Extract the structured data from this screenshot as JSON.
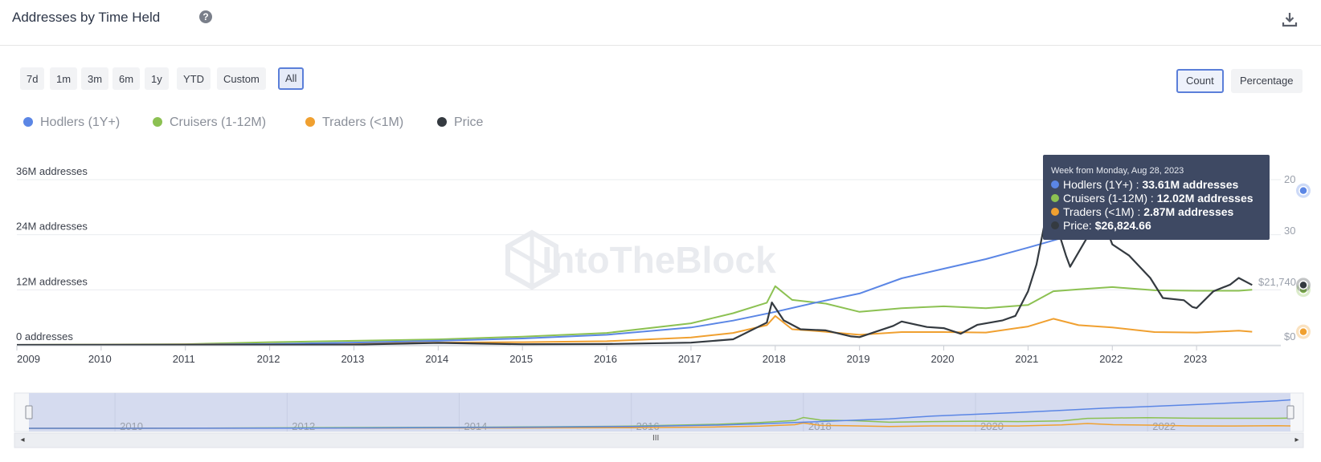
{
  "header": {
    "title": "Addresses by Time Held",
    "help_icon": "help-circle-icon",
    "download_icon": "download-icon"
  },
  "range_buttons": [
    "7d",
    "1m",
    "3m",
    "6m",
    "1y",
    "YTD",
    "Custom",
    "All"
  ],
  "active_range": "All",
  "mode_buttons": [
    "Count",
    "Percentage"
  ],
  "active_mode": "Count",
  "watermark": "IntoTheBlock",
  "colors": {
    "hodlers": "#5b86e5",
    "cruisers": "#8cc152",
    "traders": "#f0a030",
    "price": "#343a40",
    "grid": "#e9ecef",
    "navigator_fill": "#d5dbef"
  },
  "tooltip": {
    "heading": "Week from Monday, Aug 28, 2023",
    "rows": [
      {
        "label": "Hodlers (1Y+) :",
        "value": "33.61M addresses"
      },
      {
        "label": "Cruisers (1-12M) :",
        "value": "12.02M addresses"
      },
      {
        "label": "Traders (<1M) :",
        "value": "2.87M addresses"
      },
      {
        "label": "Price:",
        "value": "$26,824.66"
      }
    ]
  },
  "right_axis_partial": [
    "20",
    "30",
    "$21,740",
    "$0"
  ],
  "navigator_labels": [
    "2010",
    "2012",
    "2014",
    "2016",
    "2018",
    "2020",
    "2022"
  ],
  "scrollbar": {
    "left_arrow": "◂",
    "right_arrow": "▸",
    "grip": "III"
  },
  "chart_data": {
    "type": "line",
    "title": "Addresses by Time Held",
    "x_ticks": [
      "2009",
      "2010",
      "2011",
      "2012",
      "2013",
      "2014",
      "2015",
      "2016",
      "2017",
      "2018",
      "2019",
      "2020",
      "2021",
      "2022",
      "2023"
    ],
    "y_ticks": [
      "0 addresses",
      "12M addresses",
      "24M addresses",
      "36M addresses"
    ],
    "ylim": [
      0,
      36
    ],
    "y_unit": "M addresses",
    "legend_placement": "top-left",
    "grid": true,
    "series": [
      {
        "name": "Hodlers (1Y+)",
        "color_key": "hodlers",
        "x": [
          2009.0,
          2011.0,
          2012.0,
          2013.0,
          2014.0,
          2015.0,
          2016.0,
          2017.0,
          2017.5,
          2018.0,
          2018.5,
          2019.0,
          2019.5,
          2020.0,
          2020.5,
          2021.0,
          2021.5,
          2022.0,
          2022.5,
          2023.0,
          2023.5,
          2023.66
        ],
        "values": [
          0,
          0.05,
          0.2,
          0.5,
          0.9,
          1.4,
          2.2,
          3.8,
          5.3,
          7.2,
          9.3,
          11.2,
          14.5,
          16.6,
          18.7,
          21.2,
          23.8,
          25.7,
          27.9,
          30.0,
          32.5,
          33.61
        ]
      },
      {
        "name": "Cruisers (1-12M)",
        "color_key": "cruisers",
        "x": [
          2009.0,
          2011.0,
          2012.0,
          2013.0,
          2014.0,
          2015.0,
          2016.0,
          2017.0,
          2017.5,
          2017.9,
          2018.0,
          2018.2,
          2018.6,
          2019.0,
          2019.5,
          2020.0,
          2020.5,
          2021.0,
          2021.3,
          2021.6,
          2022.0,
          2022.5,
          2023.0,
          2023.5,
          2023.66
        ],
        "values": [
          0,
          0.15,
          0.6,
          0.9,
          1.2,
          1.8,
          2.6,
          4.7,
          6.9,
          9.2,
          12.8,
          9.8,
          9.0,
          7.2,
          8.0,
          8.4,
          8.0,
          8.7,
          11.7,
          12.1,
          12.6,
          11.9,
          11.8,
          11.8,
          12.02
        ]
      },
      {
        "name": "Traders (<1M)",
        "color_key": "traders",
        "x": [
          2009.0,
          2011.0,
          2013.0,
          2014.0,
          2015.0,
          2016.0,
          2017.0,
          2017.5,
          2017.9,
          2018.0,
          2018.2,
          2018.5,
          2019.0,
          2019.5,
          2020.0,
          2020.5,
          2021.0,
          2021.3,
          2021.6,
          2022.0,
          2022.5,
          2023.0,
          2023.5,
          2023.66
        ],
        "values": [
          0,
          0.1,
          0.3,
          0.5,
          0.6,
          0.8,
          1.6,
          2.6,
          4.3,
          6.3,
          3.4,
          3.0,
          2.2,
          2.8,
          2.8,
          2.7,
          4.0,
          5.7,
          4.3,
          3.8,
          2.8,
          2.7,
          3.1,
          2.87
        ]
      },
      {
        "name": "Price",
        "color_key": "price",
        "x": [
          2009.0,
          2013.0,
          2014.0,
          2015.0,
          2016.0,
          2017.0,
          2017.5,
          2017.9,
          2017.96,
          2018.1,
          2018.3,
          2018.6,
          2018.9,
          2019.0,
          2019.4,
          2019.5,
          2019.8,
          2020.0,
          2020.2,
          2020.4,
          2020.7,
          2020.85,
          2021.0,
          2021.1,
          2021.2,
          2021.3,
          2021.45,
          2021.5,
          2021.7,
          2021.8,
          2021.95,
          2022.0,
          2022.2,
          2022.45,
          2022.6,
          2022.85,
          2022.95,
          2023.0,
          2023.2,
          2023.4,
          2023.5,
          2023.66
        ],
        "values": [
          0,
          100,
          900,
          300,
          400,
          1000,
          2500,
          10000,
          19000,
          11000,
          7000,
          6500,
          3800,
          3500,
          8500,
          10500,
          8000,
          7500,
          5000,
          9000,
          11000,
          13000,
          24000,
          36000,
          55000,
          58000,
          40000,
          35000,
          48000,
          62000,
          50000,
          45000,
          40000,
          30000,
          21000,
          20000,
          17000,
          16500,
          24000,
          27000,
          30000,
          26824.66
        ]
      }
    ],
    "price_axis_max": 74000
  }
}
